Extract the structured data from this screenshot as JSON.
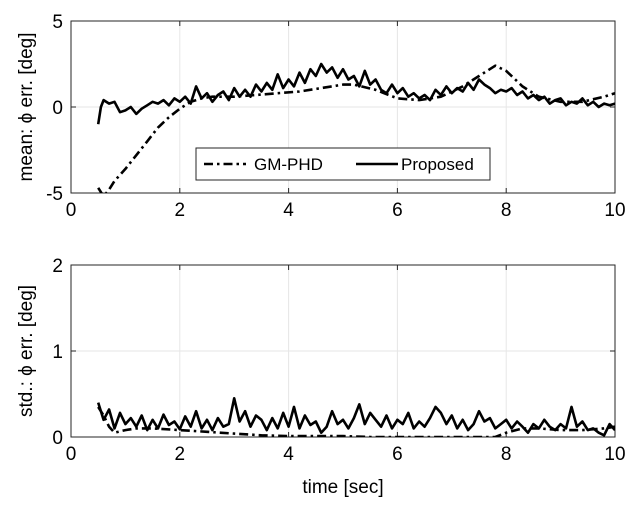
{
  "chart_data": [
    {
      "type": "line",
      "title": "",
      "xlabel": "",
      "ylabel": "mean: ϕ err. [deg]",
      "xlim": [
        0,
        10
      ],
      "ylim": [
        -5,
        5
      ],
      "xticks": [
        "0",
        "2",
        "4",
        "6",
        "8",
        "10"
      ],
      "yticks": [
        "-5",
        "0",
        "5"
      ],
      "grid": true,
      "legend": {
        "placement": "bottom-center",
        "orientation": "horizontal"
      },
      "series": [
        {
          "name": "GM-PHD",
          "style": "dashdot",
          "color": "#000000",
          "x": [
            0.5,
            0.6,
            0.7,
            0.8,
            1.0,
            1.2,
            1.4,
            1.6,
            1.8,
            2.0,
            2.2,
            2.4,
            2.6,
            2.8,
            3.0,
            3.4,
            3.8,
            4.2,
            4.6,
            5.0,
            5.2,
            5.6,
            6.0,
            6.4,
            6.8,
            7.2,
            7.5,
            7.8,
            8.0,
            8.3,
            8.6,
            9.0,
            9.4,
            9.8,
            10.0
          ],
          "y": [
            -4.7,
            -5.2,
            -4.8,
            -4.3,
            -3.6,
            -2.8,
            -2.0,
            -1.2,
            -0.6,
            -0.1,
            0.3,
            0.5,
            0.6,
            0.6,
            0.6,
            0.7,
            0.8,
            0.9,
            1.1,
            1.3,
            1.3,
            1.0,
            0.5,
            0.4,
            0.6,
            1.2,
            1.8,
            2.4,
            2.1,
            1.2,
            0.6,
            0.3,
            0.3,
            0.6,
            0.8
          ]
        },
        {
          "name": "Proposed",
          "style": "solid",
          "color": "#000000",
          "x": [
            0.5,
            0.55,
            0.6,
            0.7,
            0.8,
            0.9,
            1.0,
            1.1,
            1.2,
            1.3,
            1.4,
            1.5,
            1.6,
            1.7,
            1.8,
            1.9,
            2.0,
            2.1,
            2.2,
            2.3,
            2.4,
            2.5,
            2.6,
            2.7,
            2.8,
            2.9,
            3.0,
            3.1,
            3.2,
            3.3,
            3.4,
            3.5,
            3.6,
            3.7,
            3.8,
            3.9,
            4.0,
            4.1,
            4.2,
            4.3,
            4.4,
            4.5,
            4.6,
            4.7,
            4.8,
            4.9,
            5.0,
            5.1,
            5.2,
            5.3,
            5.4,
            5.5,
            5.6,
            5.7,
            5.8,
            5.9,
            6.0,
            6.1,
            6.2,
            6.3,
            6.4,
            6.5,
            6.6,
            6.7,
            6.8,
            6.9,
            7.0,
            7.1,
            7.2,
            7.3,
            7.4,
            7.5,
            7.6,
            7.7,
            7.8,
            7.9,
            8.0,
            8.1,
            8.2,
            8.3,
            8.4,
            8.5,
            8.6,
            8.7,
            8.8,
            8.9,
            9.0,
            9.1,
            9.2,
            9.3,
            9.4,
            9.5,
            9.6,
            9.7,
            9.8,
            9.9,
            10.0
          ],
          "y": [
            -1.0,
            0.0,
            0.4,
            0.2,
            0.3,
            -0.3,
            -0.2,
            0.0,
            -0.4,
            -0.1,
            0.1,
            0.3,
            0.2,
            0.4,
            0.1,
            0.5,
            0.3,
            0.6,
            0.2,
            1.2,
            0.5,
            0.8,
            0.3,
            0.7,
            0.9,
            0.4,
            1.1,
            0.6,
            1.0,
            0.6,
            1.3,
            0.9,
            1.4,
            1.0,
            1.9,
            1.1,
            1.6,
            1.2,
            2.0,
            1.4,
            2.2,
            1.8,
            2.5,
            2.0,
            2.3,
            1.7,
            2.2,
            1.6,
            1.8,
            1.2,
            2.1,
            1.3,
            1.6,
            1.0,
            0.8,
            1.3,
            0.8,
            1.1,
            0.6,
            0.8,
            0.5,
            0.7,
            0.4,
            1.0,
            0.7,
            1.2,
            0.8,
            1.1,
            0.9,
            1.4,
            1.0,
            1.6,
            1.3,
            1.1,
            0.8,
            1.0,
            0.9,
            1.1,
            0.7,
            0.9,
            0.5,
            0.7,
            0.4,
            0.6,
            0.2,
            0.4,
            0.5,
            0.1,
            0.3,
            0.2,
            0.5,
            0.1,
            0.3,
            0.0,
            0.2,
            0.1,
            0.2
          ]
        }
      ]
    },
    {
      "type": "line",
      "title": "",
      "xlabel": "time [sec]",
      "ylabel": "std.: ϕ err. [deg]",
      "xlim": [
        0,
        10
      ],
      "ylim": [
        0,
        2
      ],
      "xticks": [
        "0",
        "2",
        "4",
        "6",
        "8",
        "10"
      ],
      "yticks": [
        "0",
        "1",
        "2"
      ],
      "grid": true,
      "series": [
        {
          "name": "GM-PHD",
          "style": "dashdot",
          "color": "#000000",
          "x": [
            0.5,
            0.6,
            0.7,
            0.8,
            1.0,
            1.2,
            1.5,
            2.0,
            2.5,
            3.0,
            3.5,
            4.0,
            4.5,
            5.0,
            5.5,
            6.0,
            6.5,
            7.0,
            7.5,
            7.8,
            8.0,
            8.3,
            8.6,
            9.0,
            9.4,
            9.8,
            10.0
          ],
          "y": [
            0.35,
            0.25,
            0.12,
            0.05,
            0.08,
            0.1,
            0.1,
            0.08,
            0.06,
            0.04,
            0.02,
            0.01,
            0.01,
            0.01,
            0.0,
            0.0,
            0.0,
            0.0,
            0.0,
            0.0,
            0.05,
            0.1,
            0.1,
            0.08,
            0.08,
            0.1,
            0.12
          ]
        },
        {
          "name": "Proposed",
          "style": "solid",
          "color": "#000000",
          "x": [
            0.5,
            0.6,
            0.7,
            0.8,
            0.9,
            1.0,
            1.1,
            1.2,
            1.3,
            1.4,
            1.5,
            1.6,
            1.7,
            1.8,
            1.9,
            2.0,
            2.1,
            2.2,
            2.3,
            2.4,
            2.5,
            2.6,
            2.7,
            2.8,
            2.9,
            3.0,
            3.1,
            3.2,
            3.3,
            3.4,
            3.5,
            3.6,
            3.7,
            3.8,
            3.9,
            4.0,
            4.1,
            4.2,
            4.3,
            4.4,
            4.5,
            4.6,
            4.7,
            4.8,
            4.9,
            5.0,
            5.1,
            5.2,
            5.3,
            5.4,
            5.5,
            5.6,
            5.7,
            5.8,
            5.9,
            6.0,
            6.1,
            6.2,
            6.3,
            6.4,
            6.5,
            6.6,
            6.7,
            6.8,
            6.9,
            7.0,
            7.1,
            7.2,
            7.3,
            7.4,
            7.5,
            7.6,
            7.7,
            7.8,
            7.9,
            8.0,
            8.1,
            8.2,
            8.3,
            8.4,
            8.5,
            8.6,
            8.7,
            8.8,
            8.9,
            9.0,
            9.1,
            9.2,
            9.3,
            9.4,
            9.5,
            9.6,
            9.7,
            9.8,
            9.9,
            10.0
          ],
          "y": [
            0.4,
            0.2,
            0.32,
            0.1,
            0.28,
            0.15,
            0.22,
            0.12,
            0.25,
            0.08,
            0.2,
            0.1,
            0.26,
            0.14,
            0.18,
            0.09,
            0.24,
            0.12,
            0.3,
            0.1,
            0.2,
            0.08,
            0.22,
            0.12,
            0.15,
            0.45,
            0.18,
            0.3,
            0.12,
            0.25,
            0.2,
            0.08,
            0.22,
            0.1,
            0.28,
            0.12,
            0.35,
            0.1,
            0.25,
            0.14,
            0.18,
            0.05,
            0.12,
            0.3,
            0.15,
            0.2,
            0.1,
            0.22,
            0.38,
            0.15,
            0.28,
            0.2,
            0.12,
            0.25,
            0.1,
            0.2,
            0.15,
            0.28,
            0.1,
            0.18,
            0.12,
            0.22,
            0.35,
            0.28,
            0.15,
            0.25,
            0.1,
            0.2,
            0.08,
            0.15,
            0.3,
            0.18,
            0.22,
            0.1,
            0.15,
            0.2,
            0.1,
            0.18,
            0.12,
            0.05,
            0.15,
            0.1,
            0.2,
            0.12,
            0.08,
            0.15,
            0.1,
            0.35,
            0.12,
            0.18,
            0.08,
            0.1,
            0.05,
            0.02,
            0.15,
            0.08
          ]
        }
      ]
    }
  ]
}
